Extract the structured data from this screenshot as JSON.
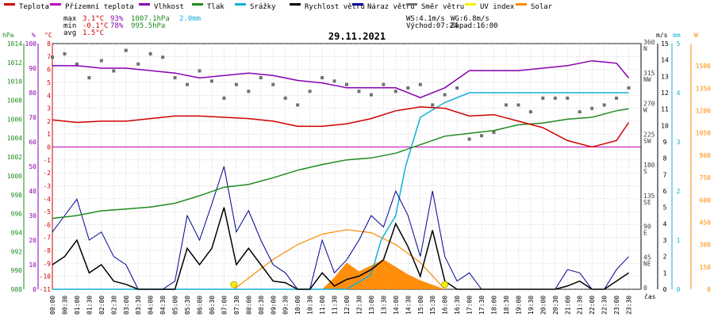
{
  "chart_data": {
    "type": "line",
    "title": "29.11.2021",
    "xlabel": "čas",
    "legend": [
      {
        "key": "temp",
        "label": "Teplota",
        "color": "#d00000"
      },
      {
        "key": "felt",
        "label": "Přízemní teplota",
        "color": "#c000c0"
      },
      {
        "key": "hum",
        "label": "Vlhkost",
        "color": "#8800b0"
      },
      {
        "key": "press",
        "label": "Tlak",
        "color": "#208a20"
      },
      {
        "key": "rain",
        "label": "Srážky",
        "color": "#10b0d8"
      },
      {
        "key": "wind",
        "label": "Rychlost větru",
        "color": "#000000"
      },
      {
        "key": "gust",
        "label": "Náraz větru",
        "color": "#000090"
      },
      {
        "key": "dir",
        "label": "Směr větru",
        "color": "#707070"
      },
      {
        "key": "uv",
        "label": "UV index",
        "color": "#f0f000"
      },
      {
        "key": "solar",
        "label": "Solar",
        "color": "#ff8800"
      }
    ],
    "stats": {
      "max_label": "max",
      "max_temp": "3.1°C",
      "max_hum": "93%",
      "max_press": "1007.1hPa",
      "max_rain": "2.0mm",
      "min_label": "min",
      "min_temp": "-0.1°C",
      "min_hum": "78%",
      "min_press": "995.5hPa",
      "avg_label": "avg",
      "avg_temp": "1.5°C",
      "ws": "WS:4.1m/s",
      "wg": "WG:6.8m/s",
      "sunrise": "Východ:07:24",
      "sunset": "Západ:16:00"
    },
    "axes": {
      "hpa": {
        "title": "hPa",
        "color": "#208a20",
        "range": [
          988,
          1014
        ],
        "ticks": [
          "1014",
          "1012",
          "1010",
          "1008",
          "1006",
          "1004",
          "1002",
          "1000",
          "998",
          "996",
          "994",
          "992",
          "990",
          "988"
        ]
      },
      "pct": {
        "title": "%",
        "color": "#8800b0",
        "range": [
          0,
          100
        ],
        "ticks": [
          "100",
          "90",
          "80",
          "70",
          "60",
          "50",
          "40",
          "30",
          "20",
          "10",
          "0"
        ]
      },
      "celsius": {
        "title": "°C",
        "color": "#d00000",
        "range": [
          -11,
          8
        ],
        "ticks": [
          "8",
          "7",
          "6",
          "5",
          "4",
          "3",
          "2",
          "1",
          "0",
          "-1",
          "-2",
          "-3",
          "-4",
          "-5",
          "-6",
          "-7",
          "-8",
          "-9",
          "-10",
          "-11"
        ]
      },
      "ms": {
        "title": "m/s",
        "color": "#000000",
        "range": [
          0,
          15
        ],
        "ticks": [
          "15",
          "14",
          "13",
          "12",
          "11",
          "10",
          "9",
          "8",
          "7",
          "6",
          "5",
          "4",
          "3",
          "2",
          "1",
          "0"
        ]
      },
      "deg": {
        "color": "#404040",
        "range": [
          0,
          360
        ],
        "ticks": [
          {
            "v": 360,
            "deg": "360",
            "card": "N"
          },
          {
            "v": 315,
            "deg": "315",
            "card": "NW"
          },
          {
            "v": 270,
            "deg": "270",
            "card": "W"
          },
          {
            "v": 225,
            "deg": "225",
            "card": "SW"
          },
          {
            "v": 180,
            "deg": "180",
            "card": "S"
          },
          {
            "v": 135,
            "deg": "135",
            "card": "SE"
          },
          {
            "v": 90,
            "deg": "90",
            "card": "E"
          },
          {
            "v": 45,
            "deg": "45",
            "card": "NE"
          },
          {
            "v": 0,
            "deg": "0",
            "card": ""
          }
        ]
      },
      "mm": {
        "title": "mm",
        "color": "#10b0d8",
        "range": [
          0,
          5
        ],
        "ticks": [
          "5",
          "4",
          "3",
          "2",
          "1",
          "0"
        ]
      },
      "watt": {
        "title": "W",
        "color": "#ff8800",
        "range": [
          0,
          1650
        ],
        "ticks": [
          "1500",
          "1350",
          "1200",
          "1050",
          "900",
          "750",
          "600",
          "450",
          "300",
          "150",
          "0"
        ]
      },
      "time": [
        "00:00",
        "00:30",
        "01:00",
        "01:30",
        "02:00",
        "02:30",
        "03:00",
        "03:30",
        "04:00",
        "04:30",
        "05:00",
        "05:30",
        "06:00",
        "06:30",
        "07:00",
        "07:30",
        "08:00",
        "08:30",
        "09:00",
        "09:30",
        "10:00",
        "10:30",
        "11:00",
        "11:30",
        "12:00",
        "12:30",
        "13:00",
        "13:30",
        "14:00",
        "14:30",
        "15:00",
        "15:30",
        "16:00",
        "16:30",
        "17:00",
        "17:30",
        "18:00",
        "18:30",
        "19:00",
        "19:30",
        "20:00",
        "20:30",
        "21:00",
        "21:30",
        "22:00",
        "22:30",
        "23:00",
        "23:30"
      ]
    },
    "series": {
      "temp": {
        "x": [
          0,
          1,
          2,
          3,
          4,
          5,
          6,
          7,
          8,
          9,
          10,
          11,
          12,
          13,
          14,
          15,
          16,
          17,
          18,
          19,
          20,
          21,
          22,
          23,
          23.5
        ],
        "y": [
          2.1,
          1.9,
          2.0,
          2.0,
          2.2,
          2.4,
          2.4,
          2.3,
          2.2,
          2.0,
          1.6,
          1.6,
          1.8,
          2.2,
          2.8,
          3.1,
          3.0,
          2.4,
          2.5,
          2.0,
          1.5,
          0.5,
          0.0,
          0.5,
          1.9
        ]
      },
      "felt_level": 0,
      "hum": {
        "x": [
          0,
          1,
          2,
          3,
          4,
          5,
          6,
          7,
          8,
          9,
          10,
          11,
          12,
          13,
          14,
          15,
          16,
          17,
          18,
          19,
          20,
          21,
          22,
          23,
          23.5
        ],
        "y": [
          91,
          91,
          90,
          90,
          89,
          88,
          86,
          87,
          88,
          87,
          85,
          84,
          82,
          82,
          82,
          78,
          82,
          89,
          89,
          89,
          90,
          91,
          93,
          92,
          86
        ]
      },
      "press": {
        "x": [
          0,
          1,
          2,
          3,
          4,
          5,
          6,
          7,
          8,
          9,
          10,
          11,
          12,
          13,
          14,
          15,
          16,
          17,
          18,
          19,
          20,
          21,
          22,
          23,
          23.5
        ],
        "y": [
          995.5,
          995.8,
          996.3,
          996.5,
          996.7,
          997.1,
          997.9,
          998.8,
          999.1,
          999.8,
          1000.6,
          1001.2,
          1001.7,
          1001.9,
          1002.4,
          1003.3,
          1004.2,
          1004.5,
          1004.8,
          1005.4,
          1005.6,
          1006.0,
          1006.2,
          1006.9,
          1007.1
        ]
      },
      "rain": {
        "x": [
          0,
          12,
          13,
          13.4,
          14,
          14.4,
          15,
          16,
          17,
          23.5
        ],
        "y": [
          0,
          0,
          0.3,
          1.0,
          1.5,
          2.5,
          3.5,
          3.8,
          4.0,
          4.0
        ]
      },
      "wind": {
        "x": [
          0,
          0.5,
          1,
          1.5,
          2,
          2.5,
          3,
          3.5,
          4,
          4.5,
          5,
          5.5,
          6,
          6.5,
          7,
          7.5,
          8,
          8.5,
          9,
          9.5,
          10,
          10.5,
          11,
          11.5,
          12,
          12.5,
          13,
          13.5,
          14,
          14.5,
          15,
          15.5,
          16,
          16.5,
          17,
          17.5,
          18,
          18.5,
          19,
          19.5,
          20,
          20.5,
          21,
          21.5,
          22,
          22.5,
          23,
          23.5
        ],
        "y": [
          1.5,
          2.0,
          3.0,
          1.0,
          1.5,
          0.5,
          0.3,
          0,
          0,
          0,
          0,
          2.5,
          1.5,
          2.5,
          5.0,
          1.5,
          2.5,
          1.5,
          0.5,
          0.4,
          0,
          0,
          1.0,
          0.2,
          0.6,
          0.8,
          1.2,
          1.8,
          4.0,
          2.6,
          0.8,
          3.6,
          0.5,
          0,
          0,
          0,
          0,
          0,
          0,
          0,
          0,
          0,
          0.2,
          0.5,
          0,
          0,
          0.5,
          1.0
        ]
      },
      "gust": {
        "x": [
          0,
          0.5,
          1,
          1.5,
          2,
          2.5,
          3,
          3.5,
          4,
          4.5,
          5,
          5.5,
          6,
          6.5,
          7,
          7.5,
          8,
          8.5,
          9,
          9.5,
          10,
          10.5,
          11,
          11.5,
          12,
          12.5,
          13,
          13.5,
          14,
          14.5,
          15,
          15.5,
          16,
          16.5,
          17,
          17.5,
          18,
          18.5,
          19,
          19.5,
          20,
          20.5,
          21,
          21.5,
          22,
          22.5,
          23,
          23.5
        ],
        "y": [
          3.5,
          4.5,
          5.5,
          3.0,
          3.5,
          2.0,
          1.5,
          0,
          0,
          0,
          0.5,
          4.5,
          3.0,
          5.2,
          7.5,
          3.5,
          4.8,
          3.0,
          1.5,
          1.0,
          0,
          0,
          3.0,
          1.0,
          1.8,
          3.0,
          4.5,
          3.8,
          6.0,
          4.5,
          2.0,
          6.0,
          2.0,
          0.5,
          1.0,
          0,
          0,
          0,
          0,
          0,
          0,
          0,
          1.2,
          1.0,
          0,
          0,
          1.2,
          2.0
        ]
      },
      "dir": {
        "x": [
          0,
          0.5,
          1,
          1.5,
          2,
          2.5,
          3,
          3.5,
          4,
          4.5,
          5,
          5.5,
          6,
          6.5,
          7,
          7.5,
          8,
          8.5,
          9,
          9.5,
          10,
          10.5,
          11,
          11.5,
          12,
          12.5,
          13,
          13.5,
          14,
          14.5,
          15,
          15.5,
          16,
          16.5,
          17,
          17.5,
          18,
          18.5,
          19,
          19.5,
          20,
          20.5,
          21,
          21.5,
          22,
          22.5,
          23,
          23.5
        ],
        "y": [
          340,
          345,
          330,
          310,
          335,
          320,
          350,
          330,
          345,
          340,
          310,
          300,
          320,
          305,
          280,
          300,
          290,
          310,
          300,
          280,
          270,
          290,
          310,
          305,
          300,
          290,
          285,
          300,
          290,
          295,
          300,
          270,
          285,
          295,
          220,
          225,
          230,
          270,
          270,
          260,
          280,
          280,
          280,
          260,
          265,
          270,
          280,
          295
        ]
      },
      "solar": {
        "x": [
          11,
          11.5,
          12,
          12.5,
          13,
          13.5,
          14,
          14.5,
          15,
          15.5,
          16
        ],
        "y": [
          0,
          80,
          180,
          120,
          160,
          200,
          150,
          100,
          60,
          30,
          0
        ]
      },
      "sun_curve": {
        "x": [
          7.4,
          9,
          10,
          11,
          12,
          13,
          14,
          15,
          16
        ],
        "y": [
          0,
          200,
          300,
          370,
          400,
          380,
          300,
          180,
          0
        ]
      },
      "sun_markers": [
        7.4,
        16.0
      ]
    }
  }
}
